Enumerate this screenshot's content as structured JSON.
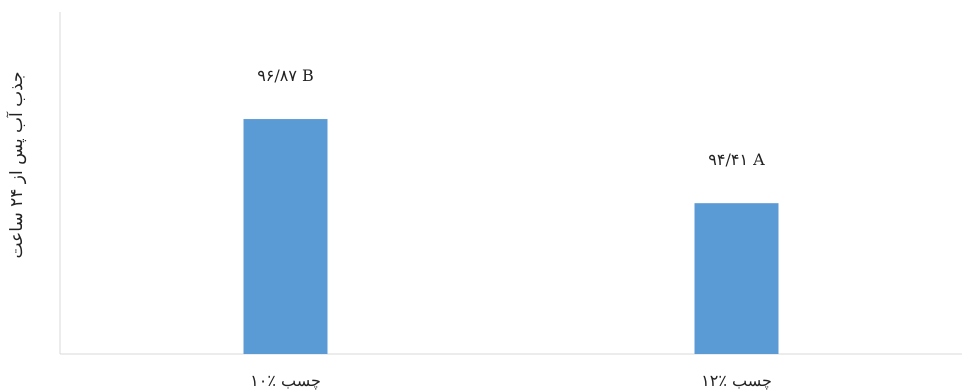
{
  "chart_data": {
    "type": "bar",
    "title": "",
    "xlabel": "",
    "ylabel": "جذب آب پس از ۲۴ ساعت",
    "categories": [
      "چسب ٪۱۰",
      "چسب ٪۱۲"
    ],
    "values": [
      96.87,
      94.41
    ],
    "data_labels": [
      "۹۶/۸۷ B",
      "۹۴/۴۱ A"
    ],
    "ylim": [
      90,
      100
    ],
    "grid": false,
    "legend": "none",
    "colors": {
      "bar": "#5b9bd5",
      "axis": "#d9d9d9",
      "text": "#222222"
    }
  }
}
